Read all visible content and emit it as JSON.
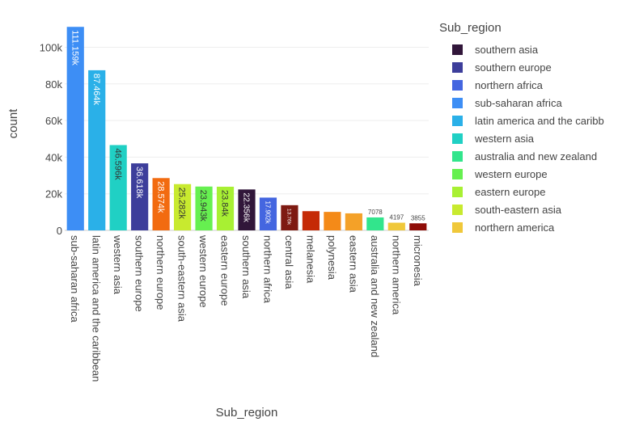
{
  "chart_data": {
    "type": "bar",
    "xlabel": "Sub_region",
    "ylabel": "count",
    "ylim": [
      0,
      117000
    ],
    "yticks": [
      0,
      20000,
      40000,
      60000,
      80000,
      100000
    ],
    "ytick_labels": [
      "0",
      "20k",
      "40k",
      "60k",
      "80k",
      "100k"
    ],
    "grid": true,
    "legend_position": "right",
    "legend_title": "Sub_region",
    "categories": [
      "sub-saharan africa",
      "latin america and the caribbean",
      "western asia",
      "southern europe",
      "northern europe",
      "south-eastern asia",
      "western europe",
      "eastern europe",
      "southern asia",
      "northern africa",
      "central asia",
      "melanesia",
      "polynesia",
      "eastern asia",
      "australia and new zealand",
      "northern america",
      "micronesia"
    ],
    "values": [
      111159,
      87464,
      46596,
      36618,
      28574,
      25282,
      23943,
      23840,
      22356,
      17902,
      13760,
      10500,
      10100,
      9300,
      7078,
      4197,
      3855
    ],
    "data_labels": [
      "111.159k",
      "87.464k",
      "46.596k",
      "36.618k",
      "28.574k",
      "25.282k",
      "23.943k",
      "23.84k",
      "22.356k",
      "17.902k",
      "13.76k",
      "",
      "",
      "",
      "7078",
      "4197",
      "3855"
    ],
    "colors": [
      "#3d8ef5",
      "#2ab0e8",
      "#20d0c4",
      "#3d3e9b",
      "#f26b10",
      "#c8ea2f",
      "#66f050",
      "#a8f033",
      "#31163a",
      "#4466e0",
      "#7e1a12",
      "#c52a06",
      "#f48a18",
      "#f4a128",
      "#32e58c",
      "#f0c83a",
      "#8f0d08"
    ],
    "legend": [
      {
        "label": "southern asia",
        "color": "#31163a"
      },
      {
        "label": "southern europe",
        "color": "#3d3e9b"
      },
      {
        "label": "northern africa",
        "color": "#4466e0"
      },
      {
        "label": "sub-saharan africa",
        "color": "#3d8ef5"
      },
      {
        "label": "latin america and the caribb",
        "color": "#2ab0e8"
      },
      {
        "label": "western asia",
        "color": "#20d0c4"
      },
      {
        "label": "australia and new zealand",
        "color": "#32e58c"
      },
      {
        "label": "western europe",
        "color": "#66f050"
      },
      {
        "label": "eastern europe",
        "color": "#a8f033"
      },
      {
        "label": "south-eastern asia",
        "color": "#c8ea2f"
      },
      {
        "label": "northern america",
        "color": "#f0c83a"
      }
    ]
  }
}
